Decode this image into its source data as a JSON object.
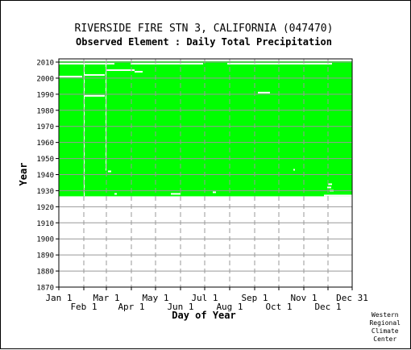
{
  "title": "RIVERSIDE FIRE STN 3, CALIFORNIA   (047470)",
  "subtitle": "Observed Element : Daily Total Precipitation",
  "credit": [
    "Western",
    "Regional",
    "Climate",
    "Center"
  ],
  "colors": {
    "data": "#00ff00",
    "grid": "#999999",
    "axis": "#000000",
    "background": "#ffffff"
  },
  "chart_data": {
    "type": "heatmap",
    "xlabel": "Day of Year",
    "ylabel": "Year",
    "xlim": [
      1,
      365
    ],
    "ylim": [
      1870,
      2012
    ],
    "grid": true,
    "x_ticks_upper": [
      {
        "label": "Jan 1",
        "day": 1
      },
      {
        "label": "Mar 1",
        "day": 60
      },
      {
        "label": "May 1",
        "day": 121
      },
      {
        "label": "Jul 1",
        "day": 182
      },
      {
        "label": "Sep 1",
        "day": 244
      },
      {
        "label": "Nov 1",
        "day": 305
      },
      {
        "label": "Dec 31",
        "day": 365
      }
    ],
    "x_ticks_lower": [
      {
        "label": "Feb 1",
        "day": 32
      },
      {
        "label": "Apr 1",
        "day": 91
      },
      {
        "label": "Jun 1",
        "day": 152
      },
      {
        "label": "Aug 1",
        "day": 213
      },
      {
        "label": "Oct 1",
        "day": 274
      },
      {
        "label": "Dec 1",
        "day": 335
      }
    ],
    "y_ticks": [
      1870,
      1880,
      1890,
      1900,
      1910,
      1920,
      1930,
      1940,
      1950,
      1960,
      1970,
      1980,
      1990,
      2000,
      2010
    ],
    "data_coverage": {
      "first_year": 1927,
      "last_year": 2010,
      "day_start": 1,
      "day_end": 365,
      "status": "observed"
    },
    "missing_gaps": [
      {
        "year": 2009,
        "day_start": 1,
        "day_end": 70
      },
      {
        "year": 2009,
        "day_start": 90,
        "day_end": 180
      },
      {
        "year": 2009,
        "day_start": 210,
        "day_end": 340
      },
      {
        "year": 2001,
        "day_start": 1,
        "day_end": 30
      },
      {
        "year": 2002,
        "day_start": 33,
        "day_end": 58
      },
      {
        "year": 2005,
        "day_start": 60,
        "day_end": 95
      },
      {
        "year": 2004,
        "day_start": 95,
        "day_end": 105
      },
      {
        "year": 1989,
        "day_start": 33,
        "day_end": 58
      },
      {
        "year": 1991,
        "day_start": 248,
        "day_end": 263
      },
      {
        "year": 1942,
        "day_start": 62,
        "day_end": 66
      },
      {
        "year": 1943,
        "day_start": 292,
        "day_end": 294
      },
      {
        "year": 1934,
        "day_start": 335,
        "day_end": 340
      },
      {
        "year": 1932,
        "day_start": 334,
        "day_end": 339
      },
      {
        "year": 1930,
        "day_start": 337,
        "day_end": 342
      },
      {
        "year": 1928,
        "day_start": 140,
        "day_end": 152
      },
      {
        "year": 1928,
        "day_start": 70,
        "day_end": 73
      },
      {
        "year": 1929,
        "day_start": 192,
        "day_end": 196
      },
      {
        "year": 1927,
        "day_start": 330,
        "day_end": 365
      }
    ],
    "missing_streaks": [
      {
        "day": 32,
        "year_start": 1927,
        "year_end": 2010
      },
      {
        "day": 59,
        "year_start": 1943,
        "year_end": 2010
      }
    ]
  }
}
